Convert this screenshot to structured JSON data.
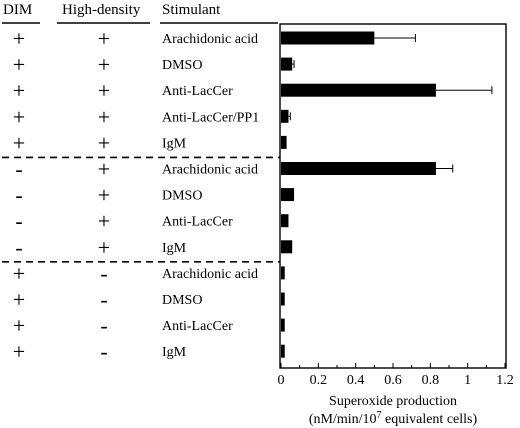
{
  "columns": {
    "dim": "DIM",
    "high_density": "High-density",
    "stimulant": "Stimulant"
  },
  "rows": [
    {
      "dim": "+",
      "hd": "+",
      "stimulant": "Arachidonic acid"
    },
    {
      "dim": "+",
      "hd": "+",
      "stimulant": "DMSO"
    },
    {
      "dim": "+",
      "hd": "+",
      "stimulant": "Anti-LacCer"
    },
    {
      "dim": "+",
      "hd": "+",
      "stimulant": "Anti-LacCer/PP1"
    },
    {
      "dim": "+",
      "hd": "+",
      "stimulant": "IgM"
    },
    {
      "dim": "-",
      "hd": "+",
      "stimulant": "Arachidonic acid"
    },
    {
      "dim": "-",
      "hd": "+",
      "stimulant": "DMSO"
    },
    {
      "dim": "-",
      "hd": "+",
      "stimulant": "Anti-LacCer"
    },
    {
      "dim": "-",
      "hd": "+",
      "stimulant": "IgM"
    },
    {
      "dim": "+",
      "hd": "-",
      "stimulant": "Arachidonic acid"
    },
    {
      "dim": "+",
      "hd": "-",
      "stimulant": "DMSO"
    },
    {
      "dim": "+",
      "hd": "-",
      "stimulant": "Anti-LacCer"
    },
    {
      "dim": "+",
      "hd": "-",
      "stimulant": "IgM"
    }
  ],
  "chart_data": {
    "type": "bar",
    "orientation": "horizontal",
    "categories": [
      "Arachidonic acid",
      "DMSO",
      "Anti-LacCer",
      "Anti-LacCer/PP1",
      "IgM",
      "Arachidonic acid",
      "DMSO",
      "Anti-LacCer",
      "IgM",
      "Arachidonic acid",
      "DMSO",
      "Anti-LacCer",
      "IgM"
    ],
    "values": [
      0.5,
      0.06,
      0.83,
      0.04,
      0.03,
      0.83,
      0.07,
      0.04,
      0.06,
      0.02,
      0.02,
      0.02,
      0.02
    ],
    "errors": [
      0.22,
      0.01,
      0.3,
      0.01,
      0.0,
      0.09,
      0.0,
      0.0,
      0.0,
      0.0,
      0.0,
      0.0,
      0.0
    ],
    "xlim": [
      0,
      1.2
    ],
    "xticks": [
      "0",
      "0.2",
      "0.4",
      "0.6",
      "0.8",
      "1",
      "1.2"
    ],
    "xtick_values": [
      0,
      0.2,
      0.4,
      0.6,
      0.8,
      1.0,
      1.2
    ],
    "xlabel_line1": "Superoxide production",
    "xlabel_line2_prefix": "(nM/min/10",
    "xlabel_line2_sup": "7",
    "xlabel_line2_suffix": " equivalent  cells)",
    "bar_color": "#000000",
    "group_separators_after": [
      4,
      8
    ]
  }
}
